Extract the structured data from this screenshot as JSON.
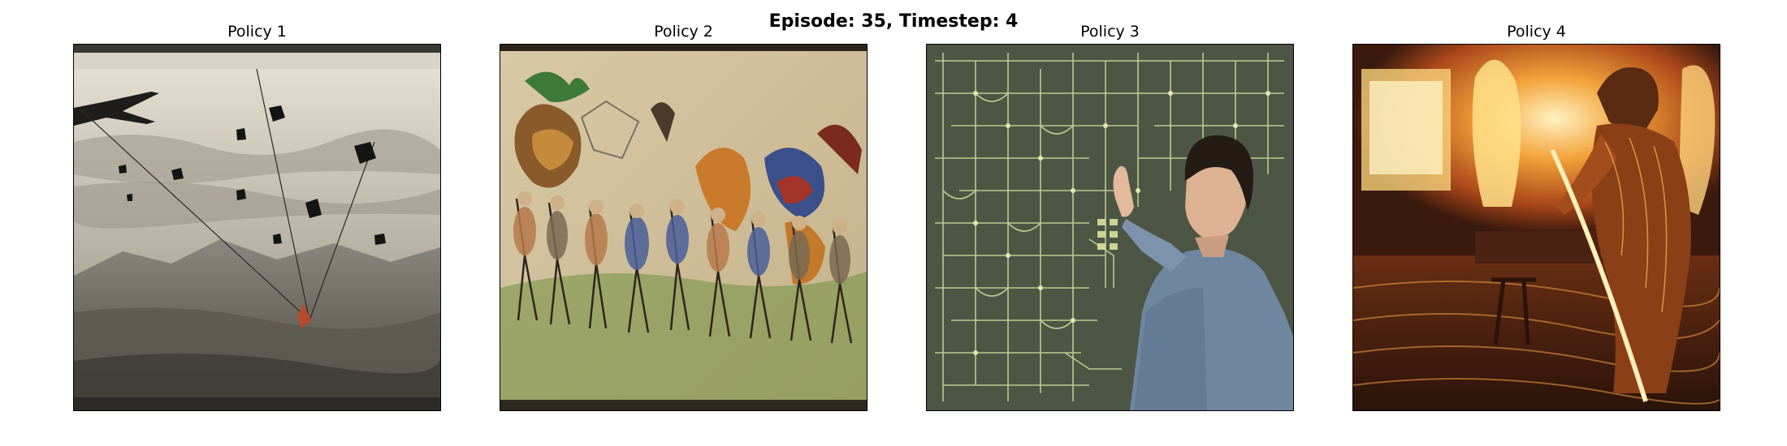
{
  "figure": {
    "title": "Episode: 35, Timestep: 4"
  },
  "panels": [
    {
      "title": "Policy 1",
      "image_subject": "vintage engraving of an aircraft dropping cargo over a mountain landscape"
    },
    {
      "title": "Policy 2",
      "image_subject": "old parchment painting of a surreal procession of figures and creatures"
    },
    {
      "title": "Policy 3",
      "image_subject": "man gesturing at a large green circuit board wall"
    },
    {
      "title": "Policy 4",
      "image_subject": "expressionist painting of a blacksmith with a glowing blade before a furnace"
    }
  ]
}
